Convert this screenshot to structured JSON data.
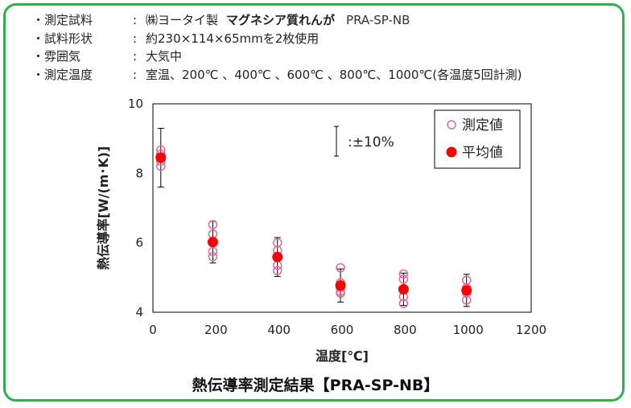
{
  "specs": [
    {
      "label": "・測定試料",
      "sep": ":",
      "value": "㈱ヨータイ製",
      "strong": "マグネシア質れんが",
      "model": "PRA-SP-NB"
    },
    {
      "label": "・試料形状",
      "sep": ":",
      "value": "約230×114×65mmを2枚使用"
    },
    {
      "label": "・雰囲気",
      "sep": ":",
      "value": "大気中"
    },
    {
      "label": "・測定温度",
      "sep": ":",
      "value": "室温、200℃ 、400℃ 、600℃ 、800℃、1000℃(各温度5回計測)"
    }
  ],
  "caption": "熱伝導率測定結果【PRA-SP-NB】",
  "error_note": ":±10%",
  "colors": {
    "frame": "#2bb34a",
    "measured": "#e06a9a",
    "average": "#ff0000"
  },
  "chart_data": {
    "type": "scatter",
    "xlabel": "温度[℃]",
    "ylabel": "熱伝導率[W/(m･K)]",
    "xlim": [
      0,
      1200
    ],
    "ylim": [
      4,
      10
    ],
    "x_ticks": [
      "0",
      "200",
      "400",
      "600",
      "800",
      "1000",
      "1200"
    ],
    "y_ticks": [
      "4",
      "6",
      "8",
      "10"
    ],
    "legend_position": "top-right",
    "series": [
      {
        "name": "測定値",
        "marker": "open-circle",
        "points": [
          {
            "x": 25,
            "y": 8.67
          },
          {
            "x": 25,
            "y": 8.55
          },
          {
            "x": 25,
            "y": 8.45
          },
          {
            "x": 25,
            "y": 8.35
          },
          {
            "x": 25,
            "y": 8.2
          },
          {
            "x": 190,
            "y": 6.52
          },
          {
            "x": 190,
            "y": 6.25
          },
          {
            "x": 190,
            "y": 6.0
          },
          {
            "x": 190,
            "y": 5.75
          },
          {
            "x": 190,
            "y": 5.6
          },
          {
            "x": 395,
            "y": 6.0
          },
          {
            "x": 395,
            "y": 5.78
          },
          {
            "x": 395,
            "y": 5.6
          },
          {
            "x": 395,
            "y": 5.35
          },
          {
            "x": 395,
            "y": 5.2
          },
          {
            "x": 595,
            "y": 5.28
          },
          {
            "x": 595,
            "y": 4.85
          },
          {
            "x": 595,
            "y": 4.7
          },
          {
            "x": 595,
            "y": 4.6
          },
          {
            "x": 595,
            "y": 4.55
          },
          {
            "x": 795,
            "y": 5.1
          },
          {
            "x": 795,
            "y": 4.95
          },
          {
            "x": 795,
            "y": 4.65
          },
          {
            "x": 795,
            "y": 4.45
          },
          {
            "x": 795,
            "y": 4.25
          },
          {
            "x": 995,
            "y": 4.92
          },
          {
            "x": 995,
            "y": 4.7
          },
          {
            "x": 995,
            "y": 4.6
          },
          {
            "x": 995,
            "y": 4.55
          },
          {
            "x": 995,
            "y": 4.35
          }
        ]
      },
      {
        "name": "平均値",
        "marker": "filled-circle",
        "points": [
          {
            "x": 25,
            "y": 8.45
          },
          {
            "x": 190,
            "y": 6.02
          },
          {
            "x": 395,
            "y": 5.59
          },
          {
            "x": 595,
            "y": 4.77
          },
          {
            "x": 795,
            "y": 4.66
          },
          {
            "x": 995,
            "y": 4.63
          }
        ],
        "error_percent": 10
      }
    ]
  }
}
